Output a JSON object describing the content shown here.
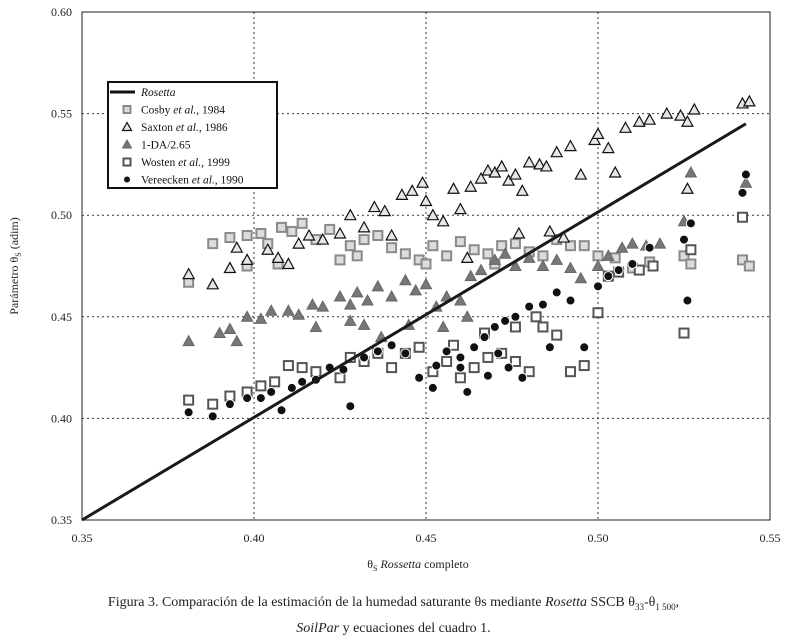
{
  "chart_data": {
    "type": "scatter",
    "xlim": [
      0.35,
      0.55
    ],
    "ylim": [
      0.35,
      0.6
    ],
    "xticks": [
      "0.35",
      "0.40",
      "0.45",
      "0.50",
      "0.55"
    ],
    "yticks": [
      "0.35",
      "0.40",
      "0.45",
      "0.50",
      "0.55",
      "0.60"
    ],
    "grid": true,
    "legend_placement": "top-left",
    "xlabel": {
      "theta": "θ",
      "sub": "S",
      "italic": "Rossetta",
      "rest": " completo"
    },
    "ylabel": {
      "pre": "Parámetro θ",
      "sub": "S",
      "rest": " (adim)"
    },
    "line": {
      "name": "Rosetta",
      "x": [
        0.35,
        0.543
      ],
      "y": [
        0.35,
        0.545
      ]
    },
    "legend": [
      {
        "name": "Rosetta",
        "italic": "",
        "year": "",
        "marker": "line"
      },
      {
        "name": "Cosby ",
        "italic": "et al.",
        "year": ", 1984",
        "marker": "square-light"
      },
      {
        "name": "Saxton ",
        "italic": "et al.",
        "year": ", 1986",
        "marker": "triangle-open"
      },
      {
        "name": "1-DA/2.65",
        "italic": "",
        "year": "",
        "marker": "triangle-filled"
      },
      {
        "name": "Wosten ",
        "italic": "et al.",
        "year": ", 1999",
        "marker": "square-open"
      },
      {
        "name": "Vereecken ",
        "italic": "et al.",
        "year": ", 1990",
        "marker": "dot"
      }
    ],
    "series": [
      {
        "name": "Cosby et al., 1984",
        "marker": "square-light",
        "points": [
          [
            0.381,
            0.467
          ],
          [
            0.388,
            0.486
          ],
          [
            0.393,
            0.489
          ],
          [
            0.398,
            0.49
          ],
          [
            0.402,
            0.491
          ],
          [
            0.404,
            0.486
          ],
          [
            0.408,
            0.494
          ],
          [
            0.411,
            0.492
          ],
          [
            0.414,
            0.496
          ],
          [
            0.418,
            0.488
          ],
          [
            0.422,
            0.493
          ],
          [
            0.425,
            0.478
          ],
          [
            0.407,
            0.476
          ],
          [
            0.428,
            0.485
          ],
          [
            0.432,
            0.488
          ],
          [
            0.436,
            0.49
          ],
          [
            0.44,
            0.484
          ],
          [
            0.444,
            0.481
          ],
          [
            0.448,
            0.478
          ],
          [
            0.452,
            0.485
          ],
          [
            0.456,
            0.48
          ],
          [
            0.46,
            0.487
          ],
          [
            0.464,
            0.483
          ],
          [
            0.468,
            0.481
          ],
          [
            0.472,
            0.485
          ],
          [
            0.476,
            0.486
          ],
          [
            0.48,
            0.482
          ],
          [
            0.484,
            0.48
          ],
          [
            0.488,
            0.488
          ],
          [
            0.492,
            0.485
          ],
          [
            0.496,
            0.485
          ],
          [
            0.5,
            0.48
          ],
          [
            0.505,
            0.479
          ],
          [
            0.51,
            0.474
          ],
          [
            0.515,
            0.477
          ],
          [
            0.525,
            0.48
          ],
          [
            0.527,
            0.476
          ],
          [
            0.542,
            0.478
          ],
          [
            0.544,
            0.475
          ],
          [
            0.398,
            0.475
          ],
          [
            0.45,
            0.476
          ],
          [
            0.47,
            0.476
          ],
          [
            0.43,
            0.48
          ]
        ]
      },
      {
        "name": "Saxton et al., 1986",
        "marker": "triangle-open",
        "points": [
          [
            0.381,
            0.471
          ],
          [
            0.388,
            0.466
          ],
          [
            0.393,
            0.474
          ],
          [
            0.395,
            0.484
          ],
          [
            0.398,
            0.478
          ],
          [
            0.404,
            0.483
          ],
          [
            0.407,
            0.479
          ],
          [
            0.41,
            0.476
          ],
          [
            0.413,
            0.486
          ],
          [
            0.416,
            0.49
          ],
          [
            0.42,
            0.488
          ],
          [
            0.425,
            0.491
          ],
          [
            0.428,
            0.5
          ],
          [
            0.432,
            0.494
          ],
          [
            0.435,
            0.504
          ],
          [
            0.438,
            0.502
          ],
          [
            0.44,
            0.49
          ],
          [
            0.443,
            0.51
          ],
          [
            0.446,
            0.512
          ],
          [
            0.449,
            0.516
          ],
          [
            0.45,
            0.507
          ],
          [
            0.452,
            0.5
          ],
          [
            0.455,
            0.497
          ],
          [
            0.458,
            0.513
          ],
          [
            0.46,
            0.503
          ],
          [
            0.463,
            0.514
          ],
          [
            0.466,
            0.518
          ],
          [
            0.468,
            0.522
          ],
          [
            0.47,
            0.521
          ],
          [
            0.472,
            0.524
          ],
          [
            0.474,
            0.517
          ],
          [
            0.476,
            0.52
          ],
          [
            0.478,
            0.512
          ],
          [
            0.48,
            0.526
          ],
          [
            0.483,
            0.525
          ],
          [
            0.485,
            0.524
          ],
          [
            0.488,
            0.531
          ],
          [
            0.492,
            0.534
          ],
          [
            0.495,
            0.52
          ],
          [
            0.499,
            0.537
          ],
          [
            0.5,
            0.54
          ],
          [
            0.503,
            0.533
          ],
          [
            0.505,
            0.521
          ],
          [
            0.508,
            0.543
          ],
          [
            0.512,
            0.546
          ],
          [
            0.515,
            0.547
          ],
          [
            0.52,
            0.55
          ],
          [
            0.524,
            0.549
          ],
          [
            0.526,
            0.546
          ],
          [
            0.528,
            0.552
          ],
          [
            0.526,
            0.513
          ],
          [
            0.542,
            0.555
          ],
          [
            0.544,
            0.556
          ],
          [
            0.477,
            0.491
          ],
          [
            0.486,
            0.492
          ],
          [
            0.49,
            0.489
          ],
          [
            0.462,
            0.479
          ]
        ]
      },
      {
        "name": "1-DA/2.65",
        "marker": "triangle-filled",
        "points": [
          [
            0.381,
            0.438
          ],
          [
            0.39,
            0.442
          ],
          [
            0.393,
            0.444
          ],
          [
            0.395,
            0.438
          ],
          [
            0.398,
            0.45
          ],
          [
            0.402,
            0.449
          ],
          [
            0.405,
            0.453
          ],
          [
            0.41,
            0.453
          ],
          [
            0.413,
            0.451
          ],
          [
            0.417,
            0.456
          ],
          [
            0.42,
            0.455
          ],
          [
            0.425,
            0.46
          ],
          [
            0.428,
            0.456
          ],
          [
            0.43,
            0.462
          ],
          [
            0.433,
            0.458
          ],
          [
            0.436,
            0.465
          ],
          [
            0.44,
            0.46
          ],
          [
            0.444,
            0.468
          ],
          [
            0.447,
            0.463
          ],
          [
            0.45,
            0.466
          ],
          [
            0.453,
            0.455
          ],
          [
            0.456,
            0.46
          ],
          [
            0.46,
            0.458
          ],
          [
            0.463,
            0.47
          ],
          [
            0.466,
            0.473
          ],
          [
            0.47,
            0.478
          ],
          [
            0.473,
            0.481
          ],
          [
            0.476,
            0.475
          ],
          [
            0.48,
            0.479
          ],
          [
            0.484,
            0.475
          ],
          [
            0.488,
            0.478
          ],
          [
            0.492,
            0.474
          ],
          [
            0.495,
            0.469
          ],
          [
            0.5,
            0.475
          ],
          [
            0.503,
            0.48
          ],
          [
            0.507,
            0.484
          ],
          [
            0.51,
            0.486
          ],
          [
            0.514,
            0.485
          ],
          [
            0.518,
            0.486
          ],
          [
            0.525,
            0.497
          ],
          [
            0.527,
            0.521
          ],
          [
            0.543,
            0.516
          ],
          [
            0.418,
            0.445
          ],
          [
            0.432,
            0.446
          ],
          [
            0.445,
            0.446
          ],
          [
            0.455,
            0.445
          ],
          [
            0.462,
            0.45
          ],
          [
            0.437,
            0.44
          ],
          [
            0.428,
            0.448
          ]
        ]
      },
      {
        "name": "Wosten et al., 1999",
        "marker": "square-open",
        "points": [
          [
            0.381,
            0.409
          ],
          [
            0.388,
            0.407
          ],
          [
            0.393,
            0.411
          ],
          [
            0.398,
            0.413
          ],
          [
            0.402,
            0.416
          ],
          [
            0.406,
            0.418
          ],
          [
            0.41,
            0.426
          ],
          [
            0.414,
            0.425
          ],
          [
            0.418,
            0.423
          ],
          [
            0.425,
            0.42
          ],
          [
            0.428,
            0.43
          ],
          [
            0.432,
            0.428
          ],
          [
            0.436,
            0.432
          ],
          [
            0.44,
            0.425
          ],
          [
            0.444,
            0.432
          ],
          [
            0.448,
            0.435
          ],
          [
            0.452,
            0.423
          ],
          [
            0.456,
            0.428
          ],
          [
            0.46,
            0.42
          ],
          [
            0.464,
            0.425
          ],
          [
            0.468,
            0.43
          ],
          [
            0.472,
            0.432
          ],
          [
            0.476,
            0.428
          ],
          [
            0.48,
            0.423
          ],
          [
            0.484,
            0.445
          ],
          [
            0.488,
            0.441
          ],
          [
            0.492,
            0.423
          ],
          [
            0.496,
            0.426
          ],
          [
            0.5,
            0.452
          ],
          [
            0.503,
            0.47
          ],
          [
            0.506,
            0.472
          ],
          [
            0.512,
            0.473
          ],
          [
            0.516,
            0.475
          ],
          [
            0.525,
            0.442
          ],
          [
            0.527,
            0.483
          ],
          [
            0.542,
            0.499
          ],
          [
            0.467,
            0.442
          ],
          [
            0.476,
            0.445
          ],
          [
            0.458,
            0.436
          ],
          [
            0.482,
            0.45
          ]
        ]
      },
      {
        "name": "Vereecken et al., 1990",
        "marker": "dot",
        "points": [
          [
            0.381,
            0.403
          ],
          [
            0.388,
            0.401
          ],
          [
            0.393,
            0.407
          ],
          [
            0.398,
            0.41
          ],
          [
            0.402,
            0.41
          ],
          [
            0.405,
            0.413
          ],
          [
            0.408,
            0.404
          ],
          [
            0.411,
            0.415
          ],
          [
            0.414,
            0.418
          ],
          [
            0.418,
            0.419
          ],
          [
            0.422,
            0.425
          ],
          [
            0.426,
            0.424
          ],
          [
            0.428,
            0.406
          ],
          [
            0.432,
            0.43
          ],
          [
            0.436,
            0.433
          ],
          [
            0.44,
            0.436
          ],
          [
            0.444,
            0.432
          ],
          [
            0.448,
            0.42
          ],
          [
            0.452,
            0.415
          ],
          [
            0.456,
            0.433
          ],
          [
            0.46,
            0.43
          ],
          [
            0.464,
            0.435
          ],
          [
            0.467,
            0.44
          ],
          [
            0.47,
            0.445
          ],
          [
            0.473,
            0.448
          ],
          [
            0.476,
            0.45
          ],
          [
            0.48,
            0.455
          ],
          [
            0.484,
            0.456
          ],
          [
            0.488,
            0.462
          ],
          [
            0.492,
            0.458
          ],
          [
            0.496,
            0.435
          ],
          [
            0.5,
            0.465
          ],
          [
            0.503,
            0.47
          ],
          [
            0.506,
            0.473
          ],
          [
            0.51,
            0.476
          ],
          [
            0.515,
            0.484
          ],
          [
            0.525,
            0.488
          ],
          [
            0.526,
            0.458
          ],
          [
            0.527,
            0.496
          ],
          [
            0.542,
            0.511
          ],
          [
            0.543,
            0.52
          ],
          [
            0.46,
            0.425
          ],
          [
            0.468,
            0.421
          ],
          [
            0.474,
            0.425
          ],
          [
            0.478,
            0.42
          ],
          [
            0.486,
            0.435
          ],
          [
            0.462,
            0.413
          ],
          [
            0.453,
            0.426
          ],
          [
            0.471,
            0.432
          ]
        ]
      }
    ]
  },
  "caption": {
    "line1_pre": "Figura 3. Comparación de la estimación de la humedad saturante θs mediante ",
    "line1_italic": "Rosetta",
    "line1_mid": " SSCB θ",
    "sub1": "33",
    "line1_mid2": "-θ",
    "sub2": "1 500",
    "line1_end": ",",
    "line2_italic": "SoilPar",
    "line2_rest": " y ecuaciones del cuadro 1."
  }
}
